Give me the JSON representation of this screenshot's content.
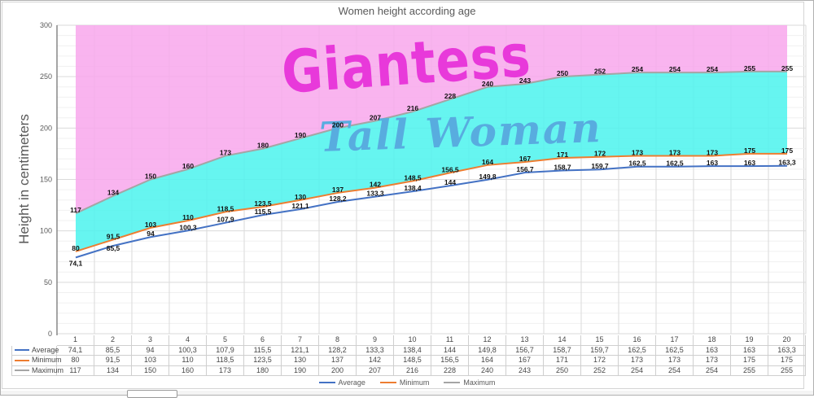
{
  "chart_data": {
    "type": "line",
    "title": "Women height according age",
    "ylabel": "Height in centimeters",
    "xlabel": "",
    "categories": [
      1,
      2,
      3,
      4,
      5,
      6,
      7,
      8,
      9,
      10,
      11,
      12,
      13,
      14,
      15,
      16,
      17,
      18,
      19,
      20
    ],
    "ylim": [
      0,
      300
    ],
    "yticks": [
      0,
      50,
      100,
      150,
      200,
      250,
      300
    ],
    "ytick_minor_step": 10,
    "grid": "major-and-minor",
    "decimal_separator": ",",
    "legend_position": "bottom",
    "data_labels": "shown-at-each-point",
    "data_table": "shown-below-axis",
    "series": [
      {
        "name": "Average",
        "color": "#4472C4",
        "values": [
          74.1,
          85.5,
          94,
          100.3,
          107.9,
          115.5,
          121.1,
          128.2,
          133.3,
          138.4,
          144,
          149.8,
          156.7,
          158.7,
          159.7,
          162.5,
          162.5,
          163,
          163,
          163.3
        ]
      },
      {
        "name": "Minimum",
        "color": "#ED7D31",
        "values": [
          80,
          91.5,
          103,
          110,
          118.5,
          123.5,
          130,
          137,
          142,
          148.5,
          156.5,
          164,
          167,
          171,
          172,
          173,
          173,
          173,
          175,
          175
        ]
      },
      {
        "name": "Maximum",
        "color": "#A5A5A5",
        "values": [
          117,
          134,
          150,
          160,
          173,
          180,
          190,
          200,
          207,
          216,
          228,
          240,
          243,
          250,
          252,
          254,
          254,
          254,
          255,
          255
        ]
      }
    ],
    "zones": [
      {
        "label": "above-maximum-zone",
        "color": "#F8A7EC"
      },
      {
        "label": "between-maximum-and-minimum-zone",
        "color": "#4BF3ED"
      }
    ],
    "watermarks": [
      {
        "text": "Giantess",
        "color": "#E839DA"
      },
      {
        "text": "Tall Woman",
        "color": "#58ACDF"
      }
    ]
  },
  "axis_text_color": "#595959",
  "data_label_color": "#111111"
}
